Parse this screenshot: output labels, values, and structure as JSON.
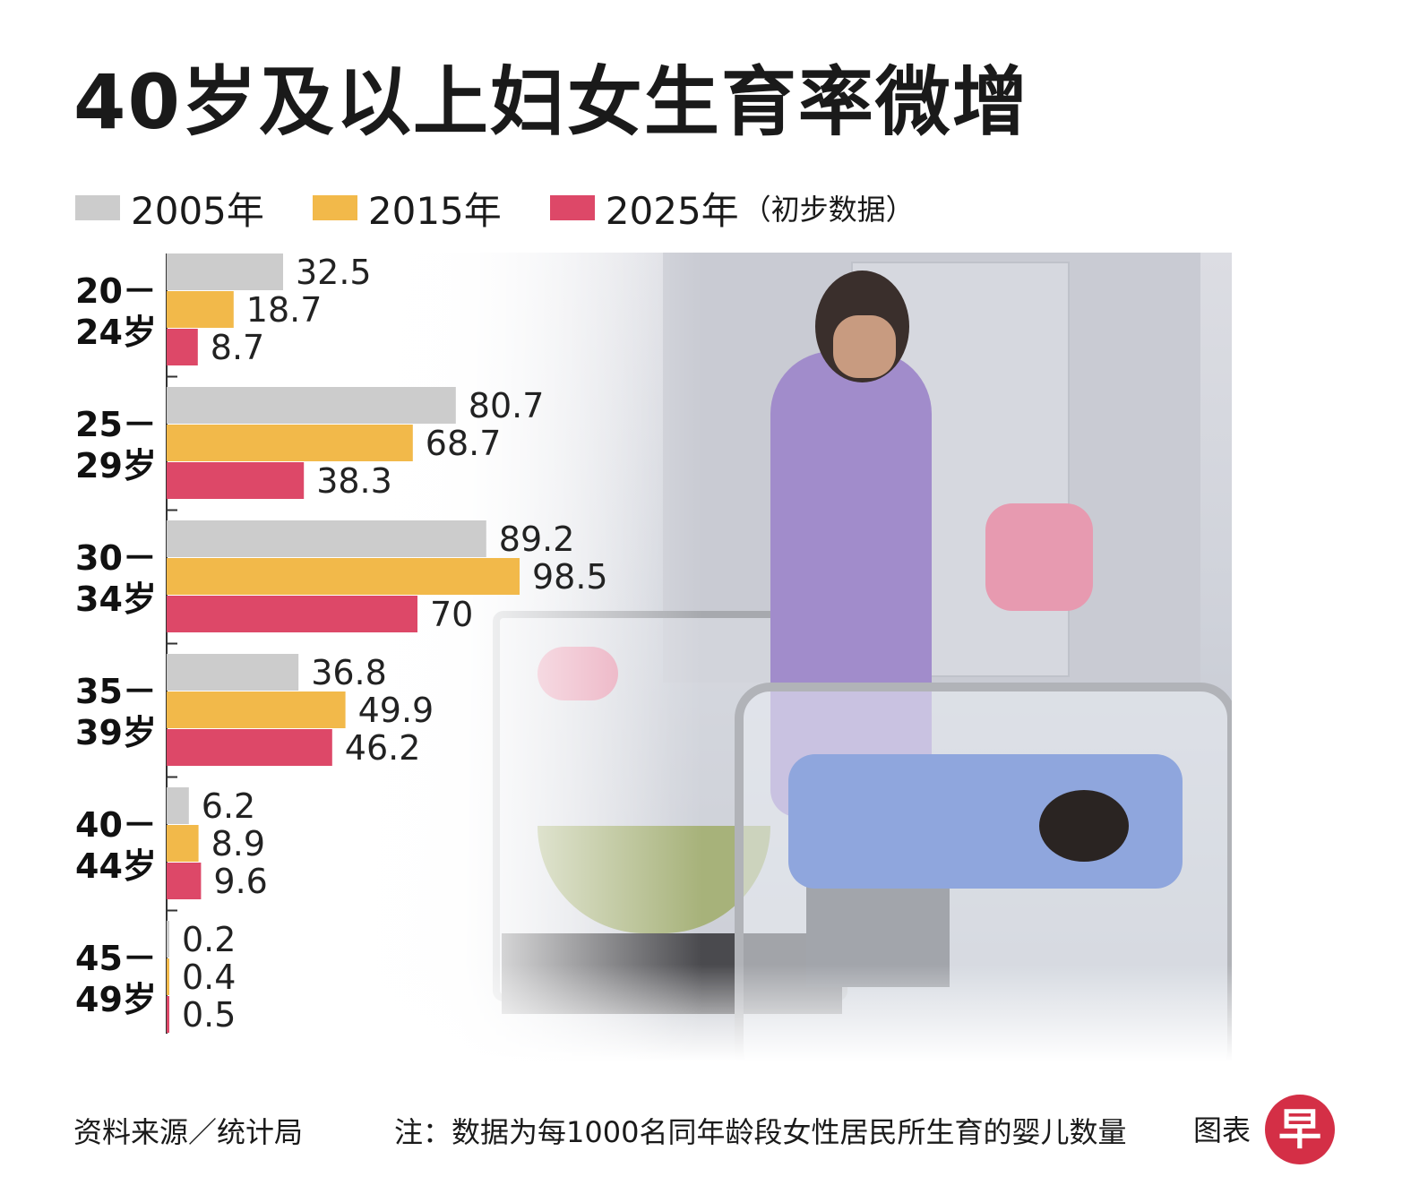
{
  "header": {
    "title": "40岁及以上妇女生育率微增"
  },
  "legend": [
    {
      "label": "2005年",
      "note": "",
      "color": "#cccccc"
    },
    {
      "label": "2015年",
      "note": "",
      "color": "#f2b94a"
    },
    {
      "label": "2025年",
      "note": "（初步数据）",
      "color": "#dd4868"
    }
  ],
  "chart_data": {
    "type": "bar",
    "orientation": "horizontal",
    "categories": [
      [
        "20－",
        "24岁"
      ],
      [
        "25－",
        "29岁"
      ],
      [
        "30－",
        "34岁"
      ],
      [
        "35－",
        "39岁"
      ],
      [
        "40－",
        "44岁"
      ],
      [
        "45－",
        "49岁"
      ]
    ],
    "series": [
      {
        "name": "2005年",
        "color": "#cccccc",
        "values": [
          32.5,
          80.7,
          89.2,
          36.8,
          6.2,
          0.2
        ],
        "labels": [
          "32.5",
          "80.7",
          "89.2",
          "36.8",
          "6.2",
          "0.2"
        ]
      },
      {
        "name": "2015年",
        "color": "#f2b94a",
        "values": [
          18.7,
          68.7,
          98.5,
          49.9,
          8.9,
          0.4
        ],
        "labels": [
          "18.7",
          "68.7",
          "98.5",
          "49.9",
          "8.9",
          "0.4"
        ]
      },
      {
        "name": "2025年（初步数据）",
        "color": "#dd4868",
        "values": [
          8.7,
          38.3,
          70,
          46.2,
          9.6,
          0.5
        ],
        "labels": [
          "8.7",
          "38.3",
          "70",
          "46.2",
          "9.6",
          "0.5"
        ]
      }
    ],
    "xlim": [
      0,
      100
    ],
    "grid": false,
    "legend_position": "top-left"
  },
  "footer": {
    "source": "资料来源／统计局",
    "note": "注：数据为每1000名同年龄段女性居民所生育的婴儿数量",
    "credit": "图表",
    "logo_char": "早"
  }
}
